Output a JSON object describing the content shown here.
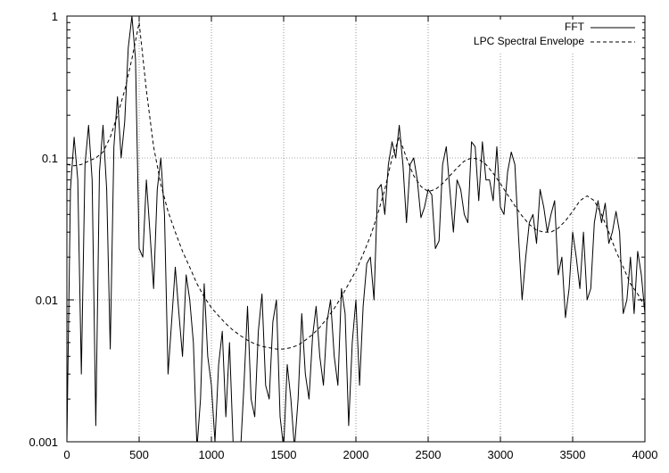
{
  "chart_data": {
    "type": "line",
    "title": "",
    "xlabel": "",
    "ylabel": "",
    "xlim": [
      0,
      4000
    ],
    "ylim": [
      0.001,
      1
    ],
    "y_scale": "log",
    "grid": true,
    "grid_style": "dotted",
    "legend_position": "top-right",
    "x_ticks": [
      0,
      500,
      1000,
      1500,
      2000,
      2500,
      3000,
      3500,
      4000
    ],
    "x_tick_labels": [
      "0",
      "500",
      "1000",
      "1500",
      "2000",
      "2500",
      "3000",
      "3500",
      "4000"
    ],
    "y_ticks": [
      0.001,
      0.01,
      0.1,
      1
    ],
    "y_tick_labels": [
      "0.001",
      "0.01",
      "0.1",
      "1"
    ],
    "series": [
      {
        "name": "FFT",
        "style": "solid",
        "color": "#000000",
        "x": [
          0,
          25,
          50,
          75,
          100,
          125,
          150,
          175,
          200,
          225,
          250,
          275,
          300,
          325,
          350,
          375,
          400,
          425,
          450,
          475,
          500,
          525,
          550,
          575,
          600,
          625,
          650,
          675,
          700,
          725,
          750,
          775,
          800,
          825,
          850,
          875,
          900,
          925,
          950,
          975,
          1000,
          1025,
          1050,
          1075,
          1100,
          1125,
          1150,
          1175,
          1200,
          1225,
          1250,
          1275,
          1300,
          1325,
          1350,
          1375,
          1400,
          1425,
          1450,
          1475,
          1500,
          1525,
          1550,
          1575,
          1600,
          1625,
          1650,
          1675,
          1700,
          1725,
          1750,
          1775,
          1800,
          1825,
          1850,
          1875,
          1900,
          1925,
          1950,
          1975,
          2000,
          2025,
          2050,
          2075,
          2100,
          2125,
          2150,
          2175,
          2200,
          2225,
          2250,
          2275,
          2300,
          2325,
          2350,
          2375,
          2400,
          2425,
          2450,
          2475,
          2500,
          2525,
          2550,
          2575,
          2600,
          2625,
          2650,
          2675,
          2700,
          2725,
          2750,
          2775,
          2800,
          2825,
          2850,
          2875,
          2900,
          2925,
          2950,
          2975,
          3000,
          3025,
          3050,
          3075,
          3100,
          3125,
          3150,
          3175,
          3200,
          3225,
          3250,
          3275,
          3300,
          3325,
          3350,
          3375,
          3400,
          3425,
          3450,
          3475,
          3500,
          3525,
          3550,
          3575,
          3600,
          3625,
          3650,
          3675,
          3700,
          3725,
          3750,
          3775,
          3800,
          3825,
          3850,
          3875,
          3900,
          3925,
          3950,
          3975,
          4000
        ],
        "values": [
          0.001,
          0.06,
          0.14,
          0.07,
          0.003,
          0.09,
          0.17,
          0.07,
          0.0013,
          0.08,
          0.17,
          0.06,
          0.0045,
          0.12,
          0.27,
          0.1,
          0.18,
          0.6,
          1.0,
          0.5,
          0.023,
          0.02,
          0.07,
          0.03,
          0.012,
          0.06,
          0.1,
          0.04,
          0.003,
          0.007,
          0.017,
          0.008,
          0.004,
          0.015,
          0.01,
          0.005,
          0.0009,
          0.002,
          0.013,
          0.004,
          0.0025,
          0.001,
          0.0035,
          0.006,
          0.0015,
          0.005,
          0.001,
          0.0009,
          0.0008,
          0.0025,
          0.009,
          0.002,
          0.0015,
          0.006,
          0.011,
          0.0025,
          0.002,
          0.007,
          0.01,
          0.0015,
          0.0009,
          0.0035,
          0.002,
          0.0009,
          0.002,
          0.008,
          0.003,
          0.002,
          0.0055,
          0.009,
          0.004,
          0.0025,
          0.007,
          0.01,
          0.004,
          0.0025,
          0.012,
          0.008,
          0.0013,
          0.005,
          0.01,
          0.0025,
          0.009,
          0.018,
          0.02,
          0.01,
          0.06,
          0.065,
          0.04,
          0.09,
          0.13,
          0.1,
          0.17,
          0.09,
          0.035,
          0.09,
          0.1,
          0.07,
          0.038,
          0.045,
          0.06,
          0.055,
          0.023,
          0.026,
          0.09,
          0.12,
          0.06,
          0.03,
          0.07,
          0.06,
          0.04,
          0.035,
          0.13,
          0.12,
          0.05,
          0.13,
          0.07,
          0.07,
          0.05,
          0.12,
          0.045,
          0.04,
          0.08,
          0.11,
          0.09,
          0.028,
          0.01,
          0.02,
          0.035,
          0.04,
          0.025,
          0.06,
          0.045,
          0.03,
          0.04,
          0.05,
          0.015,
          0.02,
          0.0075,
          0.012,
          0.03,
          0.02,
          0.012,
          0.03,
          0.01,
          0.012,
          0.035,
          0.05,
          0.035,
          0.048,
          0.025,
          0.03,
          0.042,
          0.03,
          0.008,
          0.01,
          0.02,
          0.008,
          0.022,
          0.015,
          0.008
        ]
      },
      {
        "name": "LPC Spectral Envelope",
        "style": "dashed",
        "color": "#000000",
        "x": [
          0,
          50,
          100,
          150,
          200,
          250,
          300,
          350,
          400,
          450,
          500,
          550,
          600,
          650,
          700,
          750,
          800,
          850,
          900,
          950,
          1000,
          1050,
          1100,
          1150,
          1200,
          1250,
          1300,
          1350,
          1400,
          1450,
          1500,
          1550,
          1600,
          1650,
          1700,
          1750,
          1800,
          1850,
          1900,
          1950,
          2000,
          2050,
          2100,
          2150,
          2200,
          2250,
          2300,
          2350,
          2400,
          2450,
          2500,
          2550,
          2600,
          2650,
          2700,
          2750,
          2800,
          2850,
          2900,
          2950,
          3000,
          3050,
          3100,
          3150,
          3200,
          3250,
          3300,
          3350,
          3400,
          3450,
          3500,
          3550,
          3600,
          3650,
          3700,
          3750,
          3800,
          3850,
          3900,
          3950,
          4000
        ],
        "values": [
          0.09,
          0.088,
          0.09,
          0.095,
          0.1,
          0.11,
          0.14,
          0.2,
          0.3,
          0.5,
          0.9,
          0.3,
          0.12,
          0.065,
          0.042,
          0.03,
          0.022,
          0.017,
          0.013,
          0.0105,
          0.0088,
          0.0077,
          0.0068,
          0.0061,
          0.0056,
          0.0052,
          0.0049,
          0.0047,
          0.0046,
          0.0045,
          0.0045,
          0.0046,
          0.0048,
          0.0052,
          0.0057,
          0.0064,
          0.0074,
          0.0087,
          0.0105,
          0.013,
          0.016,
          0.021,
          0.028,
          0.04,
          0.06,
          0.1,
          0.14,
          0.1,
          0.075,
          0.063,
          0.058,
          0.06,
          0.066,
          0.075,
          0.085,
          0.095,
          0.1,
          0.098,
          0.09,
          0.078,
          0.066,
          0.055,
          0.046,
          0.039,
          0.034,
          0.031,
          0.03,
          0.03,
          0.032,
          0.036,
          0.042,
          0.05,
          0.054,
          0.05,
          0.04,
          0.03,
          0.022,
          0.017,
          0.013,
          0.011,
          0.009
        ]
      }
    ]
  }
}
